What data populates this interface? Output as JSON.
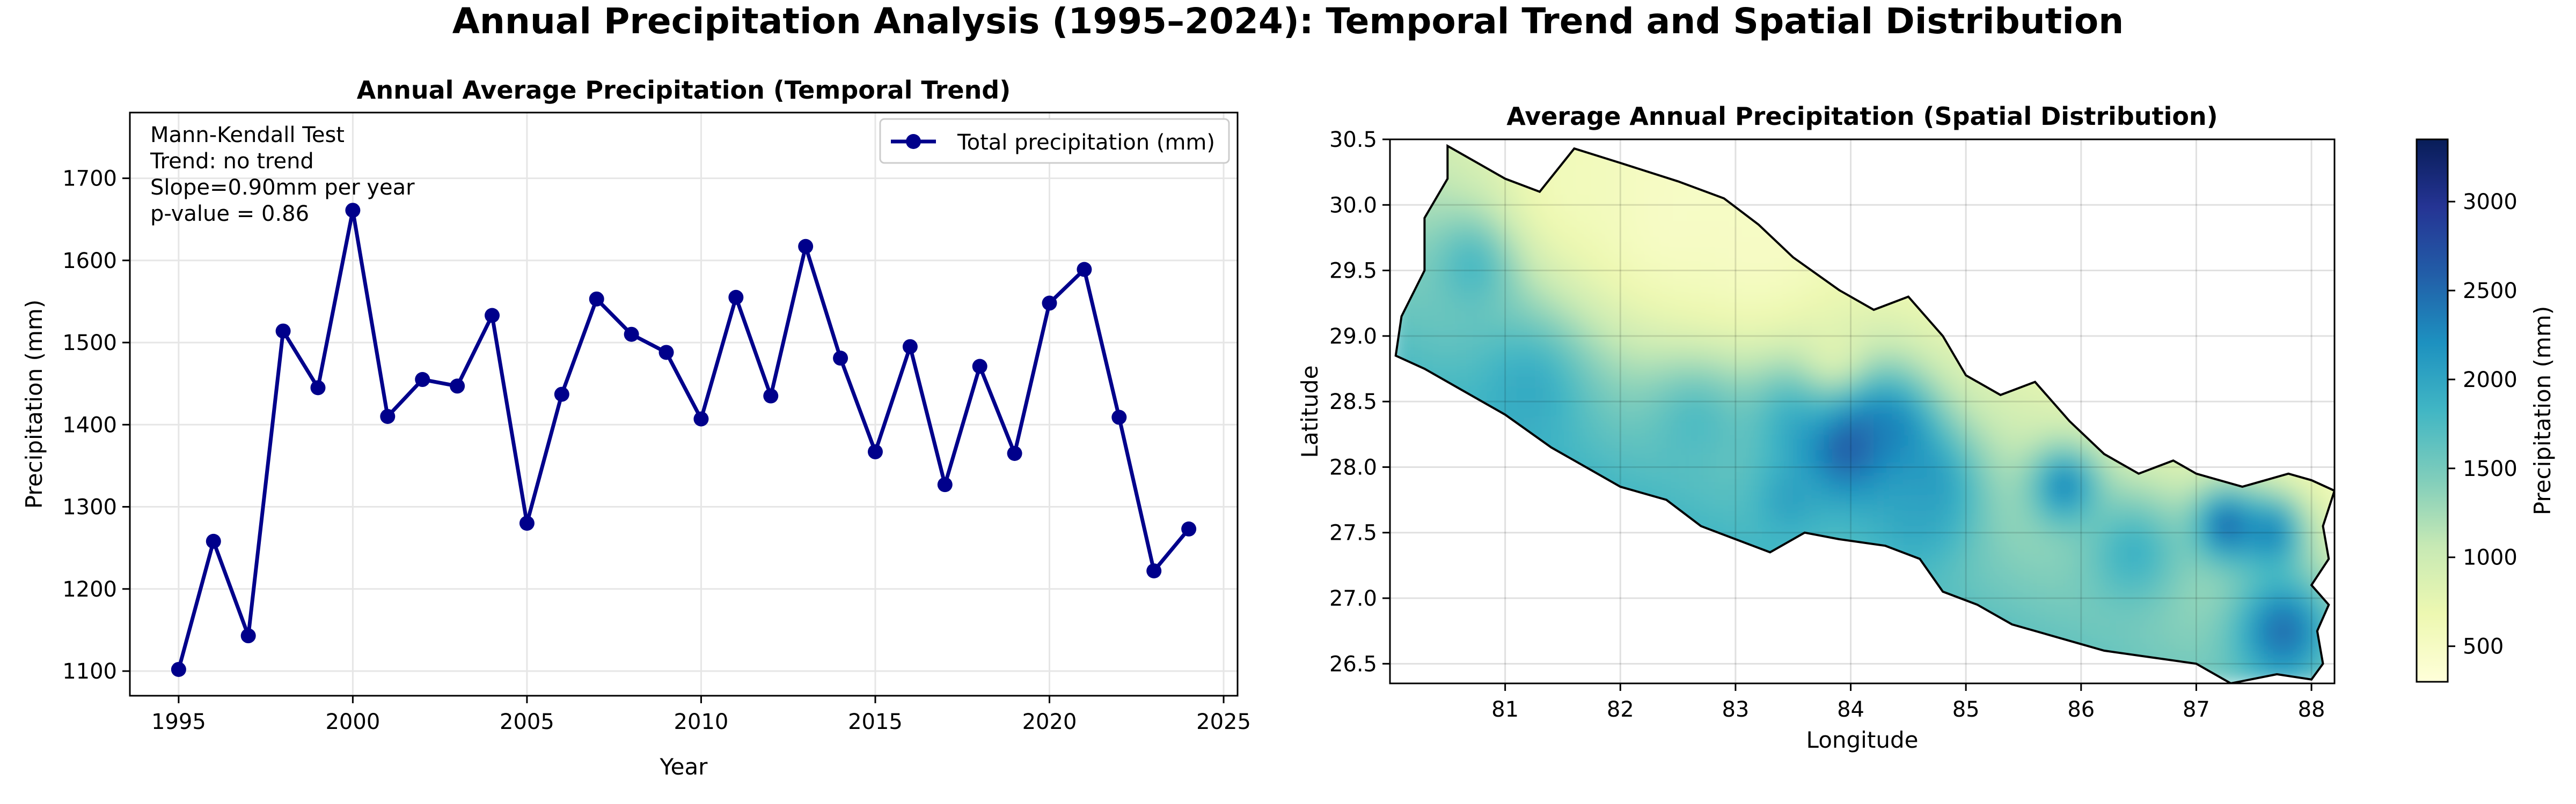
{
  "figure_title": "Annual Precipitation Analysis (1995–2024): Temporal Trend and Spatial Distribution",
  "colors": {
    "line": "#00008B",
    "grid": "#e6e6e6",
    "border": "#000000",
    "colormap": [
      "#ffffd9",
      "#edf8b1",
      "#c7e9b4",
      "#7fcdbb",
      "#41b6c4",
      "#1d91c0",
      "#225ea8",
      "#253494",
      "#081d58"
    ]
  },
  "chart_data": [
    {
      "type": "line",
      "title": "Annual Average Precipitation (Temporal Trend)",
      "xlabel": "Year",
      "ylabel": "Precipitation (mm)",
      "xlim": [
        1993.6,
        2025.4
      ],
      "ylim": [
        1070,
        1780
      ],
      "xticks": [
        1995,
        2000,
        2005,
        2010,
        2015,
        2020,
        2025
      ],
      "yticks": [
        1100,
        1200,
        1300,
        1400,
        1500,
        1600,
        1700
      ],
      "grid": true,
      "legend_position": "top-right",
      "series": [
        {
          "name": "Total precipitation (mm)",
          "x": [
            1995,
            1996,
            1997,
            1998,
            1999,
            2000,
            2001,
            2002,
            2003,
            2004,
            2005,
            2006,
            2007,
            2008,
            2009,
            2010,
            2011,
            2012,
            2013,
            2014,
            2015,
            2016,
            2017,
            2018,
            2019,
            2020,
            2021,
            2022,
            2023,
            2024
          ],
          "values": [
            1102,
            1258,
            1143,
            1514,
            1445,
            1661,
            1410,
            1455,
            1447,
            1533,
            1280,
            1437,
            1553,
            1510,
            1488,
            1407,
            1555,
            1435,
            1617,
            1481,
            1367,
            1495,
            1327,
            1471,
            1365,
            1548,
            1589,
            1409,
            1222,
            1273
          ]
        }
      ],
      "annotations": [
        "Mann-Kendall Test",
        "Trend: no trend",
        "Slope=0.90mm per year",
        "p-value = 0.86"
      ]
    },
    {
      "type": "heatmap",
      "title": "Average Annual Precipitation (Spatial Distribution)",
      "xlabel": "Longitude",
      "ylabel": "Latitude",
      "xlim": [
        80.0,
        88.2
      ],
      "ylim": [
        26.35,
        30.5
      ],
      "xticks": [
        81,
        82,
        83,
        84,
        85,
        86,
        87,
        88
      ],
      "yticks": [
        26.5,
        27.0,
        27.5,
        28.0,
        28.5,
        29.0,
        29.5,
        30.0,
        30.5
      ],
      "grid": true,
      "colorbar": {
        "label": "Precipitation (mm)",
        "range": [
          300,
          3350
        ],
        "ticks": [
          500,
          1000,
          1500,
          2000,
          2500,
          3000
        ]
      },
      "boundary": [
        [
          80.5,
          30.45
        ],
        [
          80.8,
          30.3
        ],
        [
          81.0,
          30.2
        ],
        [
          81.3,
          30.1
        ],
        [
          81.6,
          30.43
        ],
        [
          82.0,
          30.32
        ],
        [
          82.5,
          30.18
        ],
        [
          82.9,
          30.05
        ],
        [
          83.2,
          29.85
        ],
        [
          83.5,
          29.6
        ],
        [
          83.9,
          29.35
        ],
        [
          84.2,
          29.2
        ],
        [
          84.5,
          29.3
        ],
        [
          84.8,
          29.0
        ],
        [
          85.0,
          28.7
        ],
        [
          85.3,
          28.55
        ],
        [
          85.6,
          28.65
        ],
        [
          85.9,
          28.35
        ],
        [
          86.2,
          28.1
        ],
        [
          86.5,
          27.95
        ],
        [
          86.8,
          28.05
        ],
        [
          87.0,
          27.95
        ],
        [
          87.4,
          27.85
        ],
        [
          87.8,
          27.95
        ],
        [
          88.0,
          27.9
        ],
        [
          88.2,
          27.82
        ],
        [
          88.1,
          27.55
        ],
        [
          88.15,
          27.3
        ],
        [
          88.0,
          27.1
        ],
        [
          88.15,
          26.95
        ],
        [
          88.05,
          26.75
        ],
        [
          88.1,
          26.5
        ],
        [
          88.0,
          26.38
        ],
        [
          87.7,
          26.42
        ],
        [
          87.3,
          26.35
        ],
        [
          87.0,
          26.5
        ],
        [
          86.6,
          26.55
        ],
        [
          86.2,
          26.6
        ],
        [
          85.8,
          26.7
        ],
        [
          85.4,
          26.8
        ],
        [
          85.1,
          26.95
        ],
        [
          84.8,
          27.05
        ],
        [
          84.6,
          27.3
        ],
        [
          84.3,
          27.4
        ],
        [
          83.9,
          27.45
        ],
        [
          83.6,
          27.5
        ],
        [
          83.3,
          27.35
        ],
        [
          83.0,
          27.45
        ],
        [
          82.7,
          27.55
        ],
        [
          82.4,
          27.75
        ],
        [
          82.0,
          27.85
        ],
        [
          81.7,
          28.0
        ],
        [
          81.4,
          28.15
        ],
        [
          81.0,
          28.4
        ],
        [
          80.6,
          28.6
        ],
        [
          80.3,
          28.75
        ],
        [
          80.05,
          28.85
        ],
        [
          80.1,
          29.15
        ],
        [
          80.3,
          29.5
        ],
        [
          80.3,
          29.9
        ],
        [
          80.5,
          30.2
        ]
      ],
      "hotspots": [
        {
          "lon": 83.95,
          "lat": 28.2,
          "value": 3300,
          "radius": 0.35
        },
        {
          "lon": 84.3,
          "lat": 28.2,
          "value": 2400,
          "radius": 0.25
        },
        {
          "lon": 83.5,
          "lat": 28.4,
          "value": 2200,
          "radius": 0.3
        },
        {
          "lon": 87.2,
          "lat": 27.5,
          "value": 2800,
          "radius": 0.2
        },
        {
          "lon": 87.6,
          "lat": 27.45,
          "value": 2500,
          "radius": 0.2
        },
        {
          "lon": 87.7,
          "lat": 26.7,
          "value": 2700,
          "radius": 0.3
        },
        {
          "lon": 85.8,
          "lat": 27.8,
          "value": 2500,
          "radius": 0.2
        },
        {
          "lon": 84.6,
          "lat": 27.8,
          "value": 2300,
          "radius": 0.3
        },
        {
          "lon": 80.7,
          "lat": 29.5,
          "value": 2000,
          "radius": 0.25
        },
        {
          "lon": 81.2,
          "lat": 28.6,
          "value": 2100,
          "radius": 0.35
        },
        {
          "lon": 82.6,
          "lat": 28.4,
          "value": 2000,
          "radius": 0.3
        },
        {
          "lon": 83.4,
          "lat": 27.7,
          "value": 2100,
          "radius": 0.2
        },
        {
          "lon": 84.5,
          "lat": 27.55,
          "value": 2000,
          "radius": 0.3
        },
        {
          "lon": 86.4,
          "lat": 27.3,
          "value": 2000,
          "radius": 0.3
        }
      ],
      "dry_zones": [
        {
          "lon": 82.3,
          "lat": 29.8,
          "value": 400,
          "radius": 0.7
        },
        {
          "lon": 83.2,
          "lat": 29.6,
          "value": 450,
          "radius": 0.55
        },
        {
          "lon": 81.5,
          "lat": 30.1,
          "value": 550,
          "radius": 0.4
        },
        {
          "lon": 83.8,
          "lat": 28.8,
          "value": 700,
          "radius": 0.25
        }
      ]
    }
  ]
}
